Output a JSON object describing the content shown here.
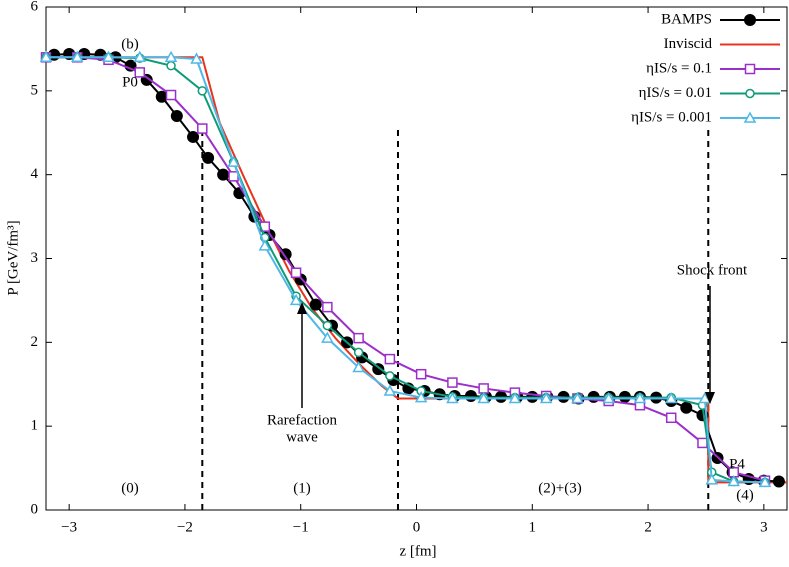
{
  "chart_data": {
    "type": "line",
    "xlabel": "z [fm]",
    "ylabel": "P [GeV/fm³]",
    "xlim": [
      -3.2,
      3.2
    ],
    "ylim": [
      0,
      6
    ],
    "xticks": [
      {
        "value": -3,
        "label": "−3"
      },
      {
        "value": -2,
        "label": "−2"
      },
      {
        "value": -1,
        "label": "−1"
      },
      0,
      1,
      2,
      3
    ],
    "yticks": [
      0,
      1,
      2,
      3,
      4,
      5,
      6
    ],
    "legend": "top-right",
    "annotations": [
      "(b)",
      "P0",
      "P4",
      "Shock front",
      "Rarefaction",
      "wave",
      "(0)",
      "(1)",
      "(2)+(3)",
      "(4)"
    ],
    "region_boundaries": [
      -1.85,
      -0.16,
      2.52
    ],
    "series": [
      {
        "name": "BAMPS",
        "color": "#000000",
        "marker": "dot",
        "x": [
          -3.13,
          -3.0,
          -2.87,
          -2.73,
          -2.6,
          -2.47,
          -2.33,
          -2.2,
          -2.07,
          -1.93,
          -1.8,
          -1.67,
          -1.53,
          -1.4,
          -1.27,
          -1.13,
          -1.0,
          -0.87,
          -0.73,
          -0.6,
          -0.47,
          -0.33,
          -0.2,
          -0.07,
          0.07,
          0.2,
          0.33,
          0.47,
          0.6,
          0.73,
          0.87,
          1.0,
          1.13,
          1.27,
          1.4,
          1.53,
          1.67,
          1.8,
          1.93,
          2.07,
          2.2,
          2.33,
          2.47,
          2.6,
          2.73,
          2.87,
          3.0,
          3.13
        ],
        "values": [
          5.43,
          5.44,
          5.44,
          5.43,
          5.4,
          5.3,
          5.13,
          4.93,
          4.7,
          4.45,
          4.2,
          4.0,
          3.78,
          3.5,
          3.28,
          3.05,
          2.75,
          2.45,
          2.2,
          2.0,
          1.82,
          1.68,
          1.55,
          1.45,
          1.42,
          1.38,
          1.36,
          1.36,
          1.35,
          1.35,
          1.35,
          1.35,
          1.35,
          1.35,
          1.33,
          1.35,
          1.35,
          1.35,
          1.35,
          1.34,
          1.3,
          1.22,
          1.13,
          0.62,
          0.45,
          0.37,
          0.35,
          0.34
        ]
      },
      {
        "name": "Inviscid",
        "color": "#e8341c",
        "marker": "none",
        "x": [
          -3.2,
          -1.85,
          -1.7,
          -1.5,
          -1.3,
          -1.1,
          -0.9,
          -0.7,
          -0.5,
          -0.3,
          -0.16,
          2.52,
          2.52,
          3.2
        ],
        "values": [
          5.4,
          5.4,
          4.62,
          4.0,
          3.4,
          2.85,
          2.4,
          2.05,
          1.75,
          1.48,
          1.33,
          1.33,
          0.33,
          0.33
        ]
      },
      {
        "name": "ηIS/s = 0.1",
        "color": "#9b2fc9",
        "marker": "square",
        "x": [
          -3.2,
          -2.93,
          -2.66,
          -2.39,
          -2.12,
          -1.85,
          -1.58,
          -1.31,
          -1.04,
          -0.77,
          -0.5,
          -0.23,
          0.04,
          0.31,
          0.58,
          0.85,
          1.12,
          1.39,
          1.66,
          1.93,
          2.2,
          2.47,
          2.74,
          3.01
        ],
        "values": [
          5.4,
          5.4,
          5.37,
          5.22,
          4.95,
          4.55,
          3.98,
          3.38,
          2.83,
          2.42,
          2.05,
          1.8,
          1.62,
          1.52,
          1.45,
          1.4,
          1.36,
          1.33,
          1.3,
          1.25,
          1.1,
          0.8,
          0.45,
          0.35
        ]
      },
      {
        "name": "ηIS/s = 0.01",
        "color": "#0f9a78",
        "marker": "circle",
        "x": [
          -3.2,
          -2.93,
          -2.66,
          -2.39,
          -2.12,
          -1.85,
          -1.58,
          -1.31,
          -1.04,
          -0.77,
          -0.5,
          -0.23,
          0.04,
          0.31,
          0.58,
          0.85,
          1.12,
          1.39,
          1.66,
          1.93,
          2.2,
          2.47,
          2.55,
          2.74,
          3.01
        ],
        "values": [
          5.4,
          5.4,
          5.4,
          5.39,
          5.3,
          5.0,
          4.15,
          3.25,
          2.55,
          2.2,
          1.88,
          1.6,
          1.42,
          1.35,
          1.34,
          1.34,
          1.34,
          1.34,
          1.34,
          1.34,
          1.34,
          1.25,
          0.45,
          0.34,
          0.33
        ]
      },
      {
        "name": "ηIS/s = 0.001",
        "color": "#4fb8e6",
        "marker": "triangle",
        "x": [
          -3.2,
          -2.93,
          -2.66,
          -2.39,
          -2.12,
          -1.9,
          -1.58,
          -1.31,
          -1.04,
          -0.77,
          -0.5,
          -0.23,
          0.04,
          0.31,
          0.58,
          0.85,
          1.12,
          1.39,
          1.66,
          1.93,
          2.2,
          2.49,
          2.55,
          2.74,
          3.01
        ],
        "values": [
          5.4,
          5.4,
          5.4,
          5.4,
          5.4,
          5.38,
          4.15,
          3.15,
          2.5,
          2.05,
          1.7,
          1.42,
          1.34,
          1.33,
          1.33,
          1.33,
          1.33,
          1.33,
          1.33,
          1.33,
          1.33,
          1.33,
          0.36,
          0.34,
          0.33
        ]
      }
    ]
  }
}
